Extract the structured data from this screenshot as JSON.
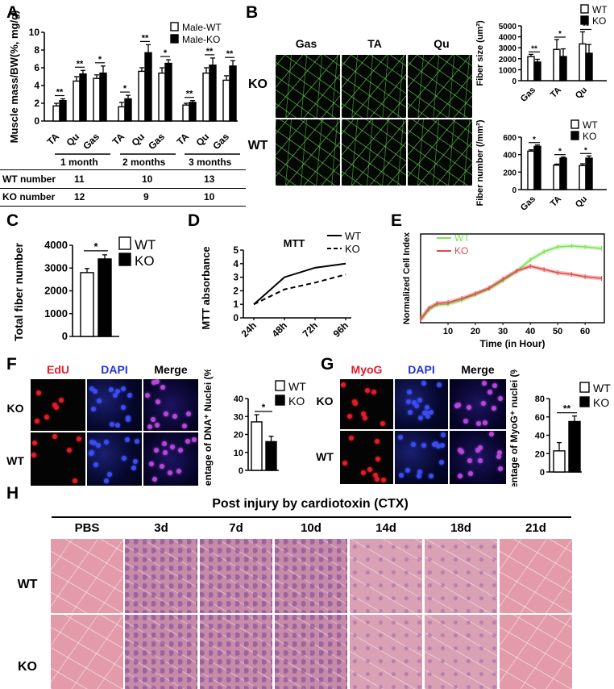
{
  "panels": {
    "A": "A",
    "B": "B",
    "C": "C",
    "D": "D",
    "E": "E",
    "F": "F",
    "G": "G",
    "H": "H"
  },
  "colors": {
    "bar_wt": "#ffffff",
    "bar_ko": "#000000",
    "he": "#e39aa9",
    "fluo_red": "#e11d2a",
    "fluo_blue": "#2233d0",
    "series_wt_green": "#7fe35a",
    "series_ko_red": "#e04a4a"
  },
  "panelA": {
    "legend": [
      "Male-WT",
      "Male-KO"
    ],
    "table": {
      "headers": [
        "1 month",
        "2 months",
        "3 months"
      ],
      "rows": [
        {
          "label": "WT number",
          "values": [
            "11",
            "10",
            "13"
          ]
        },
        {
          "label": "KO number",
          "values": [
            "12",
            "9",
            "10"
          ]
        }
      ]
    }
  },
  "panelB": {
    "columns": [
      "Gas",
      "TA",
      "Qu"
    ],
    "rows": [
      "KO",
      "WT"
    ]
  },
  "panelF": {
    "channels": [
      "EdU",
      "DAPI",
      "Merge"
    ],
    "rows": [
      "KO",
      "WT"
    ]
  },
  "panelG": {
    "channels": [
      "MyoG",
      "DAPI",
      "Merge"
    ],
    "rows": [
      "KO",
      "WT"
    ]
  },
  "panelH": {
    "title": "Post injury by cardiotoxin (CTX)",
    "columns": [
      "PBS",
      "3d",
      "7d",
      "10d",
      "14d",
      "18d",
      "21d"
    ],
    "rows": [
      "WT",
      "KO"
    ]
  },
  "chart_data": [
    {
      "id": "A",
      "type": "bar",
      "ylabel": "Muscle mass/BW(%, mg/g)",
      "ylim": [
        0,
        10
      ],
      "yticks": [
        0,
        2,
        4,
        6,
        8,
        10
      ],
      "groups": [
        {
          "name": "1 month",
          "categories": [
            "TA",
            "Qu",
            "Gas"
          ]
        },
        {
          "name": "2 months",
          "categories": [
            "TA",
            "Qu",
            "Gas"
          ]
        },
        {
          "name": "3 months",
          "categories": [
            "TA",
            "Qu",
            "Gas"
          ]
        }
      ],
      "series": [
        {
          "name": "Male-WT",
          "values": [
            1.7,
            4.5,
            4.8,
            1.6,
            5.6,
            5.4,
            1.8,
            5.4,
            4.6
          ],
          "errors": [
            0.3,
            0.5,
            0.4,
            0.5,
            0.4,
            0.6,
            0.2,
            0.6,
            0.5
          ]
        },
        {
          "name": "Male-KO",
          "values": [
            2.3,
            5.3,
            5.4,
            2.5,
            7.7,
            6.5,
            2.1,
            6.3,
            6.2
          ],
          "errors": [
            0.2,
            0.4,
            0.8,
            0.4,
            0.9,
            0.4,
            0.2,
            0.8,
            0.6
          ]
        }
      ],
      "significance": [
        "**",
        "**",
        "*",
        "*",
        "**",
        "*",
        "**",
        "**",
        "**"
      ]
    },
    {
      "id": "B1",
      "type": "bar",
      "ylabel": "Fiber size (um²)",
      "ylim": [
        0,
        5000
      ],
      "yticks": [
        0,
        1000,
        2000,
        3000,
        4000,
        5000
      ],
      "categories": [
        "Gas",
        "TA",
        "Qu"
      ],
      "legend": [
        "WT",
        "KO"
      ],
      "series": [
        {
          "name": "WT",
          "values": [
            2200,
            2850,
            3350
          ],
          "errors": [
            200,
            900,
            1100
          ]
        },
        {
          "name": "KO",
          "values": [
            1700,
            2200,
            2500
          ],
          "errors": [
            250,
            700,
            800
          ]
        }
      ],
      "significance": [
        "**",
        "*",
        "**"
      ]
    },
    {
      "id": "B2",
      "type": "bar",
      "ylabel": "Fiber number (/mm²)",
      "ylim": [
        0,
        600
      ],
      "yticks": [
        0,
        200,
        400,
        600
      ],
      "categories": [
        "Gas",
        "TA",
        "Qu"
      ],
      "legend": [
        "WT",
        "KO"
      ],
      "series": [
        {
          "name": "WT",
          "values": [
            440,
            280,
            275
          ],
          "errors": [
            15,
            12,
            20
          ]
        },
        {
          "name": "KO",
          "values": [
            495,
            360,
            360
          ],
          "errors": [
            15,
            12,
            25
          ]
        }
      ],
      "significance": [
        "*",
        "*",
        "*"
      ]
    },
    {
      "id": "C",
      "type": "bar",
      "ylabel": "Total fiber number",
      "ylim": [
        0,
        4000
      ],
      "yticks": [
        0,
        1000,
        2000,
        3000,
        4000
      ],
      "categories": [
        ""
      ],
      "legend": [
        "WT",
        "KO"
      ],
      "series": [
        {
          "name": "WT",
          "values": [
            2800
          ],
          "errors": [
            180
          ]
        },
        {
          "name": "KO",
          "values": [
            3400
          ],
          "errors": [
            180
          ]
        }
      ],
      "significance": [
        "*"
      ]
    },
    {
      "id": "D",
      "type": "line",
      "title": "MTT",
      "ylabel": "MTT absorbance",
      "ylim": [
        0,
        5
      ],
      "yticks": [
        0,
        1,
        2,
        3,
        4,
        5
      ],
      "x": [
        "24h",
        "48h",
        "72h",
        "96h"
      ],
      "series": [
        {
          "name": "WT",
          "values": [
            1.0,
            3.0,
            3.7,
            4.0
          ]
        },
        {
          "name": "KO",
          "values": [
            1.0,
            2.1,
            2.6,
            3.2
          ]
        }
      ]
    },
    {
      "id": "E",
      "type": "line",
      "xlabel": "Time (in Hour)",
      "ylabel": "Normalized Cell Index",
      "xlim": [
        0,
        67
      ],
      "xticks": [
        10,
        20,
        30,
        40,
        50,
        60
      ],
      "series": [
        {
          "name": "WT",
          "x": [
            0,
            3,
            6,
            10,
            15,
            20,
            25,
            30,
            35,
            40,
            45,
            50,
            55,
            60,
            66
          ],
          "values": [
            0.2,
            0.8,
            1.1,
            1.15,
            1.4,
            1.75,
            2.1,
            2.6,
            3.2,
            3.9,
            4.4,
            4.7,
            4.75,
            4.7,
            4.6
          ]
        },
        {
          "name": "KO",
          "x": [
            0,
            3,
            6,
            10,
            15,
            20,
            25,
            30,
            35,
            40,
            45,
            50,
            55,
            60,
            66
          ],
          "values": [
            0.2,
            0.9,
            1.2,
            1.25,
            1.5,
            1.8,
            2.15,
            2.7,
            3.2,
            3.5,
            3.3,
            3.1,
            3.0,
            2.85,
            2.75
          ]
        }
      ]
    },
    {
      "id": "F",
      "type": "bar",
      "ylabel": "Percentage of DNA⁺ Nuclei (%)",
      "ylim": [
        0,
        40
      ],
      "yticks": [
        0,
        10,
        20,
        30,
        40
      ],
      "categories": [
        ""
      ],
      "legend": [
        "WT",
        "KO"
      ],
      "series": [
        {
          "name": "WT",
          "values": [
            27
          ],
          "errors": [
            4
          ]
        },
        {
          "name": "KO",
          "values": [
            16
          ],
          "errors": [
            3
          ]
        }
      ],
      "significance": [
        "*"
      ]
    },
    {
      "id": "G",
      "type": "bar",
      "ylabel": "Percentage of MyoG⁺ nuclei (%)",
      "ylim": [
        0,
        80
      ],
      "yticks": [
        0,
        20,
        40,
        60,
        80
      ],
      "categories": [
        ""
      ],
      "legend": [
        "WT",
        "KO"
      ],
      "series": [
        {
          "name": "WT",
          "values": [
            23
          ],
          "errors": [
            9
          ]
        },
        {
          "name": "KO",
          "values": [
            55
          ],
          "errors": [
            6
          ]
        }
      ],
      "significance": [
        "**"
      ]
    }
  ]
}
